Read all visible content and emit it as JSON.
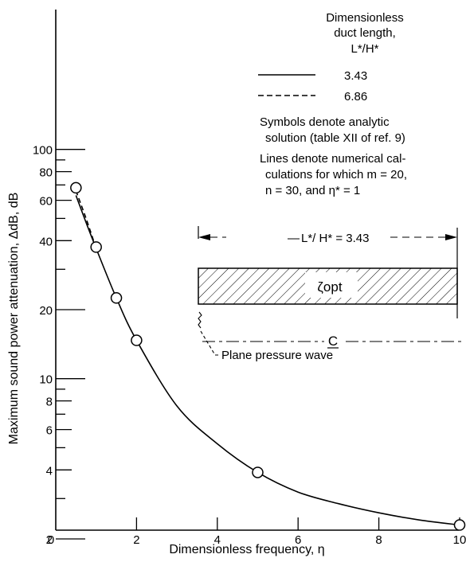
{
  "chart_data": {
    "type": "line",
    "xlabel": "Dimensionless frequency, η",
    "ylabel": "Maximum sound power attenuation, ΔdB, dB",
    "xlim": [
      0,
      10.5
    ],
    "ylim": [
      2,
      200
    ],
    "yscale": "log",
    "x_ticks": [
      0,
      2,
      4,
      6,
      8,
      10
    ],
    "y_tick_labels": [
      2,
      4,
      6,
      8,
      10,
      20,
      40,
      60,
      80,
      100
    ],
    "y_minor_ticks": [
      3,
      5,
      7,
      9,
      30,
      50,
      70,
      90
    ],
    "grid": false,
    "series": [
      {
        "name": "3.43",
        "style": "solid",
        "x": [
          0.5,
          0.75,
          1.0,
          1.5,
          2.0,
          3.0,
          4.0,
          5.0,
          6.0,
          7.0,
          8.0,
          9.0,
          10.0
        ],
        "y": [
          63,
          48,
          37,
          22.5,
          14.7,
          7.6,
          5.2,
          3.9,
          3.2,
          2.85,
          2.6,
          2.42,
          2.3
        ]
      },
      {
        "name": "6.86",
        "style": "dashed",
        "x": [
          0.5,
          0.75,
          1.0
        ],
        "y": [
          66,
          50,
          37
        ]
      },
      {
        "name": "Symbols denote analytic solution",
        "style": "marker",
        "x": [
          0.5,
          1.0,
          1.5,
          2.0,
          5.0,
          10.0
        ],
        "y": [
          68,
          37.5,
          22.5,
          14.7,
          3.9,
          2.3
        ]
      }
    ]
  },
  "legend": {
    "title_line1": "Dimensionless",
    "title_line2": "duct length,",
    "title_line3": "L*/H*",
    "entry_solid": "3.43",
    "entry_dashed": "6.86"
  },
  "notes": {
    "symbols_line1": "Symbols denote analytic",
    "symbols_line2": "solution (table XII of ref. 9)",
    "lines_line1": "Lines denote numerical cal-",
    "lines_line2": "culations for which  m = 20,",
    "lines_line3": "n = 30, and  η* = 1"
  },
  "inset": {
    "length_label": "L*/ H* = 3.43",
    "impedance_label": "ζopt",
    "centerline_label": "C",
    "wave_label": "Plane pressure wave"
  }
}
